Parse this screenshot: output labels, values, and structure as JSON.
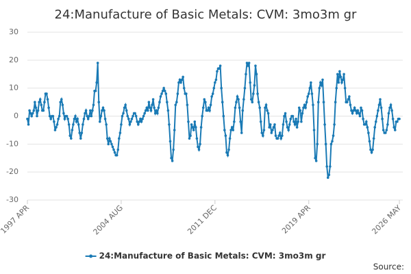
{
  "chart_data": {
    "type": "line",
    "title": "24:Manufacture of Basic Metals: CVM: 3mo3m gr",
    "source": "Source:",
    "categories": [
      "1997 APR",
      null,
      null,
      null,
      null,
      null,
      null,
      null,
      null,
      null,
      null,
      null,
      null,
      null,
      null,
      null,
      null,
      null,
      null,
      null,
      null,
      null,
      null,
      null,
      null,
      null,
      null,
      null,
      null,
      null,
      null,
      null,
      null,
      null,
      null,
      null,
      null,
      null,
      null,
      null,
      null,
      null,
      null,
      null,
      null,
      null,
      null,
      null,
      null,
      null,
      null,
      null,
      null,
      null,
      null,
      null,
      null,
      null,
      null,
      null,
      null,
      null,
      null,
      null,
      null,
      null,
      null,
      null,
      null,
      null,
      null,
      null,
      null,
      null,
      null,
      null,
      null,
      null,
      null,
      null,
      null,
      null,
      null,
      null,
      null,
      null,
      null,
      null,
      "2004 AUG",
      null,
      null,
      null,
      null,
      null,
      null,
      null,
      null,
      null,
      null,
      null,
      null,
      null,
      null,
      null,
      null,
      null,
      null,
      null,
      null,
      null,
      null,
      null,
      null,
      null,
      null,
      null,
      null,
      null,
      null,
      null,
      null,
      null,
      null,
      null,
      null,
      null,
      null,
      null,
      null,
      null,
      null,
      null,
      null,
      null,
      null,
      null,
      null,
      null,
      null,
      null,
      null,
      null,
      null,
      null,
      null,
      null,
      null,
      null,
      null,
      null,
      null,
      null,
      null,
      null,
      null,
      null,
      null,
      null,
      null,
      null,
      null,
      null,
      null,
      null,
      null,
      null,
      null,
      null,
      null,
      null,
      null,
      null,
      null,
      null,
      null,
      null,
      "2011 DEC",
      null,
      null,
      null,
      null,
      null,
      null,
      null,
      null,
      null,
      null,
      null,
      null,
      null,
      null,
      null,
      null,
      null,
      null,
      null,
      null,
      null,
      null,
      null,
      null,
      null,
      null,
      null,
      null,
      null,
      null,
      null,
      null,
      null,
      null,
      null,
      null,
      null,
      null,
      null,
      null,
      null,
      null,
      null,
      null,
      null,
      null,
      null,
      null,
      null,
      null,
      null,
      null,
      null,
      null,
      null,
      null,
      null,
      null,
      null,
      null,
      null,
      null,
      null,
      null,
      null,
      null,
      null,
      null,
      null,
      null,
      null,
      null,
      null,
      null,
      null,
      null,
      null,
      null,
      null,
      null,
      null,
      null,
      null,
      null,
      null,
      null,
      null,
      "2019 APR",
      null,
      null,
      null,
      null,
      null,
      null,
      null,
      null,
      null,
      null,
      null,
      null,
      null,
      null,
      null,
      null,
      null,
      null,
      null,
      null,
      null,
      null,
      null,
      null,
      null,
      null,
      null,
      null,
      null,
      null,
      null,
      null,
      null,
      null,
      null,
      null,
      null,
      null,
      null,
      null,
      null,
      null,
      null,
      null,
      null,
      null,
      null,
      null,
      null,
      null,
      null,
      null,
      null,
      null,
      null,
      null,
      null,
      null,
      null,
      null,
      null,
      null,
      null,
      null,
      null,
      null,
      null,
      null,
      null,
      null,
      null,
      null,
      null,
      null,
      null,
      null,
      null,
      null,
      null,
      null,
      null,
      null,
      null,
      null,
      "2026 MAY"
    ],
    "series": [
      {
        "name": "24:Manufacture of Basic Metals: CVM: 3mo3m gr",
        "color": "#1a7ab5",
        "values": [
          -1,
          -3,
          2,
          1,
          0,
          1,
          2,
          5,
          3,
          0,
          2,
          5,
          6,
          4,
          2,
          2,
          5,
          8,
          8,
          6,
          3,
          0,
          -1,
          0,
          0,
          -2,
          -5,
          -4,
          -3,
          -1,
          0,
          5,
          6,
          4,
          1,
          -1,
          0,
          0,
          -1,
          -3,
          -7,
          -8,
          -5,
          -3,
          -1,
          0,
          -2,
          -1,
          -3,
          -6,
          -8,
          -6,
          -3,
          -1,
          1,
          2,
          0,
          -1,
          0,
          2,
          0,
          2,
          4,
          9,
          9,
          12,
          19,
          5,
          -2,
          0,
          2,
          3,
          2,
          -1,
          -3,
          -8,
          -10,
          -8,
          -9,
          -10,
          -11,
          -12,
          -13,
          -14,
          -14,
          -12,
          -8,
          -6,
          -3,
          0,
          1,
          3,
          4,
          2,
          0,
          -1,
          -3,
          -2,
          -1,
          0,
          1,
          1,
          0,
          -2,
          -3,
          -2,
          -1,
          -2,
          -1,
          0,
          1,
          2,
          3,
          2,
          5,
          3,
          2,
          4,
          6,
          3,
          1,
          2,
          1,
          3,
          5,
          7,
          8,
          9,
          10,
          9,
          8,
          5,
          2,
          -3,
          -9,
          -15,
          -16,
          -12,
          -5,
          4,
          5,
          8,
          12,
          13,
          12,
          13,
          14,
          10,
          8,
          8,
          4,
          -2,
          -8,
          -7,
          -3,
          -4,
          -5,
          -2,
          -4,
          -8,
          -11,
          -12,
          -10,
          -4,
          0,
          3,
          6,
          5,
          2,
          2,
          3,
          2,
          4,
          7,
          8,
          10,
          12,
          13,
          16,
          17,
          17,
          18,
          10,
          5,
          0,
          -5,
          -7,
          -13,
          -14,
          -12,
          -8,
          -5,
          -4,
          -5,
          -2,
          3,
          5,
          7,
          6,
          3,
          -2,
          -6,
          2,
          6,
          10,
          15,
          19,
          18,
          19,
          12,
          6,
          5,
          8,
          11,
          18,
          15,
          8,
          5,
          3,
          -2,
          -6,
          -7,
          -5,
          3,
          4,
          2,
          1,
          -4,
          -3,
          -6,
          -5,
          -4,
          -3,
          -7,
          -8,
          -8,
          -7,
          -6,
          -8,
          -7,
          -3,
          0,
          1,
          -2,
          -4,
          -5,
          -3,
          -1,
          0,
          0,
          -2,
          -3,
          -1,
          -4,
          -2,
          3,
          2,
          -2,
          1,
          3,
          4,
          3,
          5,
          7,
          8,
          10,
          12,
          8,
          4,
          -5,
          -15,
          -16,
          -10,
          5,
          10,
          12,
          11,
          13,
          5,
          -3,
          -10,
          -18,
          -22,
          -21,
          -18,
          -10,
          -9,
          -7,
          -3,
          5,
          10,
          15,
          12,
          16,
          14,
          12,
          13,
          15,
          10,
          5,
          5,
          6,
          7,
          4,
          2,
          1,
          2,
          3,
          2,
          1,
          2,
          1,
          0,
          3,
          2,
          -1,
          -3,
          -3,
          -2,
          -4,
          -6,
          -9,
          -12,
          -13,
          -12,
          -8,
          -4,
          -2,
          0,
          2,
          4,
          6,
          3,
          -1,
          -5,
          -6,
          -6,
          -5,
          -3,
          1,
          3,
          4,
          2,
          -1,
          -4,
          -5,
          -2,
          -2,
          -1,
          -1
        ]
      }
    ],
    "ylim": [
      -30,
      30
    ],
    "yticks": [
      -30,
      -20,
      -10,
      0,
      10,
      20,
      30
    ],
    "grid": true,
    "legend": "bottom"
  }
}
